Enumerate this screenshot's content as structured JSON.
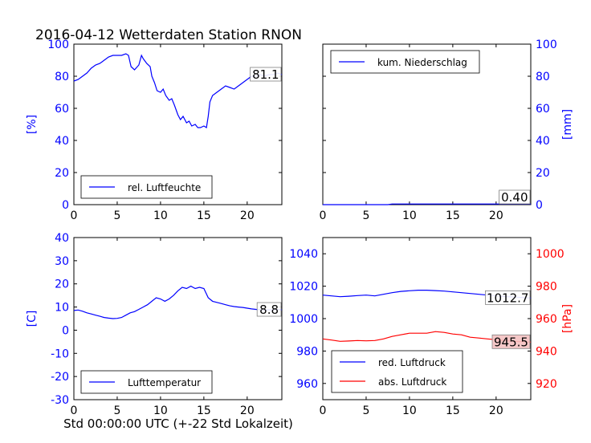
{
  "figure": {
    "title": "2016-04-12 Wetterdaten Station RNON",
    "xlabel": "Std 00:00:00 UTC (+-22 Std Lokalzeit)"
  },
  "colors": {
    "blue": "#0000ff",
    "red": "#ff0000",
    "annot_red_bg": "#f4c2c2"
  },
  "chart_data": [
    {
      "type": "line",
      "panel": "top-left",
      "ylabel": "[%]",
      "xlim": [
        0,
        24
      ],
      "ylim": [
        0,
        100
      ],
      "xticks": [
        0,
        5,
        10,
        15,
        20
      ],
      "yticks": [
        0,
        20,
        40,
        60,
        80,
        100
      ],
      "legend": "lower-center",
      "annotation": "81.1",
      "series": [
        {
          "name": "rel. Luftfeuchte",
          "color": "#0000ff",
          "x": [
            0,
            0.5,
            1,
            1.5,
            2,
            2.5,
            3,
            3.5,
            4,
            4.5,
            5,
            5.5,
            6,
            6.3,
            6.6,
            7,
            7.5,
            7.8,
            8,
            8.4,
            8.8,
            9,
            9.3,
            9.6,
            10,
            10.3,
            10.6,
            11,
            11.3,
            11.6,
            12,
            12.3,
            12.6,
            13,
            13.3,
            13.6,
            14,
            14.3,
            14.6,
            15,
            15.3,
            15.5,
            15.7,
            16,
            16.5,
            17,
            17.5,
            18,
            18.5,
            19,
            19.5,
            20,
            20.5,
            21,
            21.5,
            22,
            22.5,
            23,
            23.5,
            24
          ],
          "y": [
            77,
            78,
            80,
            82,
            85,
            87,
            88,
            90,
            92,
            93,
            93,
            93,
            94,
            93,
            86,
            84,
            87,
            93,
            91,
            88,
            86,
            80,
            76,
            71,
            70,
            72,
            68,
            65,
            66,
            62,
            56,
            53,
            55,
            51,
            52,
            49,
            50,
            48,
            48,
            49,
            48,
            55,
            64,
            68,
            70,
            72,
            74,
            73,
            72,
            74,
            76,
            78,
            80,
            80,
            81,
            80,
            81,
            81,
            82,
            81
          ]
        }
      ]
    },
    {
      "type": "line",
      "panel": "top-right",
      "ylabel": "[mm]",
      "xlim": [
        0,
        24
      ],
      "ylim": [
        0,
        100
      ],
      "xticks": [
        0,
        5,
        10,
        15,
        20
      ],
      "yticks": [
        0,
        20,
        40,
        60,
        80,
        100
      ],
      "legend": "upper-left",
      "annotation": "0.40",
      "series": [
        {
          "name": "kum. Niederschlag",
          "color": "#0000ff",
          "x": [
            0,
            7.5,
            8,
            24
          ],
          "y": [
            0,
            0,
            0.4,
            0.4
          ]
        }
      ]
    },
    {
      "type": "line",
      "panel": "bottom-left",
      "ylabel": "[C]",
      "xlim": [
        0,
        24
      ],
      "ylim": [
        -30,
        40
      ],
      "xticks": [
        0,
        5,
        10,
        15,
        20
      ],
      "yticks": [
        -30,
        -20,
        -10,
        0,
        10,
        20,
        30,
        40
      ],
      "legend": "lower-center",
      "annotation": "8.8",
      "series": [
        {
          "name": "Lufttemperatur",
          "color": "#0000ff",
          "x": [
            0,
            0.5,
            1,
            1.5,
            2,
            2.5,
            3,
            3.5,
            4,
            4.5,
            5,
            5.5,
            6,
            6.5,
            7,
            7.5,
            8,
            8.5,
            9,
            9.5,
            10,
            10.5,
            11,
            11.5,
            12,
            12.5,
            13,
            13.5,
            14,
            14.5,
            15,
            15.5,
            16,
            16.5,
            17,
            17.5,
            18,
            18.5,
            19,
            19.5,
            20,
            20.5,
            21,
            21.5,
            22,
            22.5,
            23,
            23.5,
            24
          ],
          "y": [
            8.5,
            8.7,
            8.2,
            7.5,
            7,
            6.5,
            6,
            5.5,
            5.2,
            5,
            5.1,
            5.5,
            6.5,
            7.5,
            8,
            9,
            10,
            11,
            12.5,
            14,
            13.5,
            12.5,
            13.5,
            15,
            17,
            18.5,
            18,
            19,
            18,
            18.5,
            18,
            14,
            12.5,
            12,
            11.5,
            11,
            10.5,
            10.2,
            10,
            9.8,
            9.5,
            9.2,
            9,
            8.8,
            8.6,
            8.8,
            8.7,
            8.9,
            8.8
          ]
        }
      ]
    },
    {
      "type": "line",
      "panel": "bottom-right",
      "ylabel": "[hPa]",
      "xlim": [
        0,
        24
      ],
      "ylim_left": [
        950,
        1050
      ],
      "ylim_right": [
        910,
        1010
      ],
      "xticks": [
        0,
        5,
        10,
        15,
        20
      ],
      "yticks_left": [
        960,
        980,
        1000,
        1020,
        1040
      ],
      "yticks_right": [
        920,
        940,
        960,
        980,
        1000
      ],
      "legend": "lower-center",
      "annotations": [
        "1012.7",
        "945.5"
      ],
      "series": [
        {
          "name": "red. Luftdruck",
          "color": "#0000ff",
          "axis": "left",
          "x": [
            0,
            1,
            2,
            3,
            4,
            5,
            6,
            7,
            8,
            9,
            10,
            11,
            12,
            13,
            14,
            15,
            16,
            17,
            18,
            19,
            20,
            21,
            22,
            23,
            24
          ],
          "y": [
            1014.5,
            1014,
            1013.5,
            1013.8,
            1014.2,
            1014.5,
            1014,
            1015,
            1016,
            1016.8,
            1017.2,
            1017.5,
            1017.5,
            1017.3,
            1017,
            1016.5,
            1016,
            1015.5,
            1015,
            1014.5,
            1014,
            1013.6,
            1013.3,
            1013,
            1012.7
          ]
        },
        {
          "name": "abs. Luftdruck",
          "color": "#ff0000",
          "axis": "right",
          "x": [
            0,
            1,
            2,
            3,
            4,
            5,
            6,
            7,
            8,
            9,
            10,
            11,
            12,
            13,
            14,
            15,
            16,
            17,
            18,
            19,
            20,
            21,
            22,
            23,
            24
          ],
          "y": [
            947.5,
            946.8,
            946,
            946.2,
            946.5,
            946.3,
            946.5,
            947.5,
            949,
            950,
            951,
            951,
            951,
            952,
            951.5,
            950.5,
            950,
            948.5,
            948,
            947.5,
            947,
            946.5,
            946,
            945.8,
            945.5
          ]
        }
      ]
    }
  ]
}
